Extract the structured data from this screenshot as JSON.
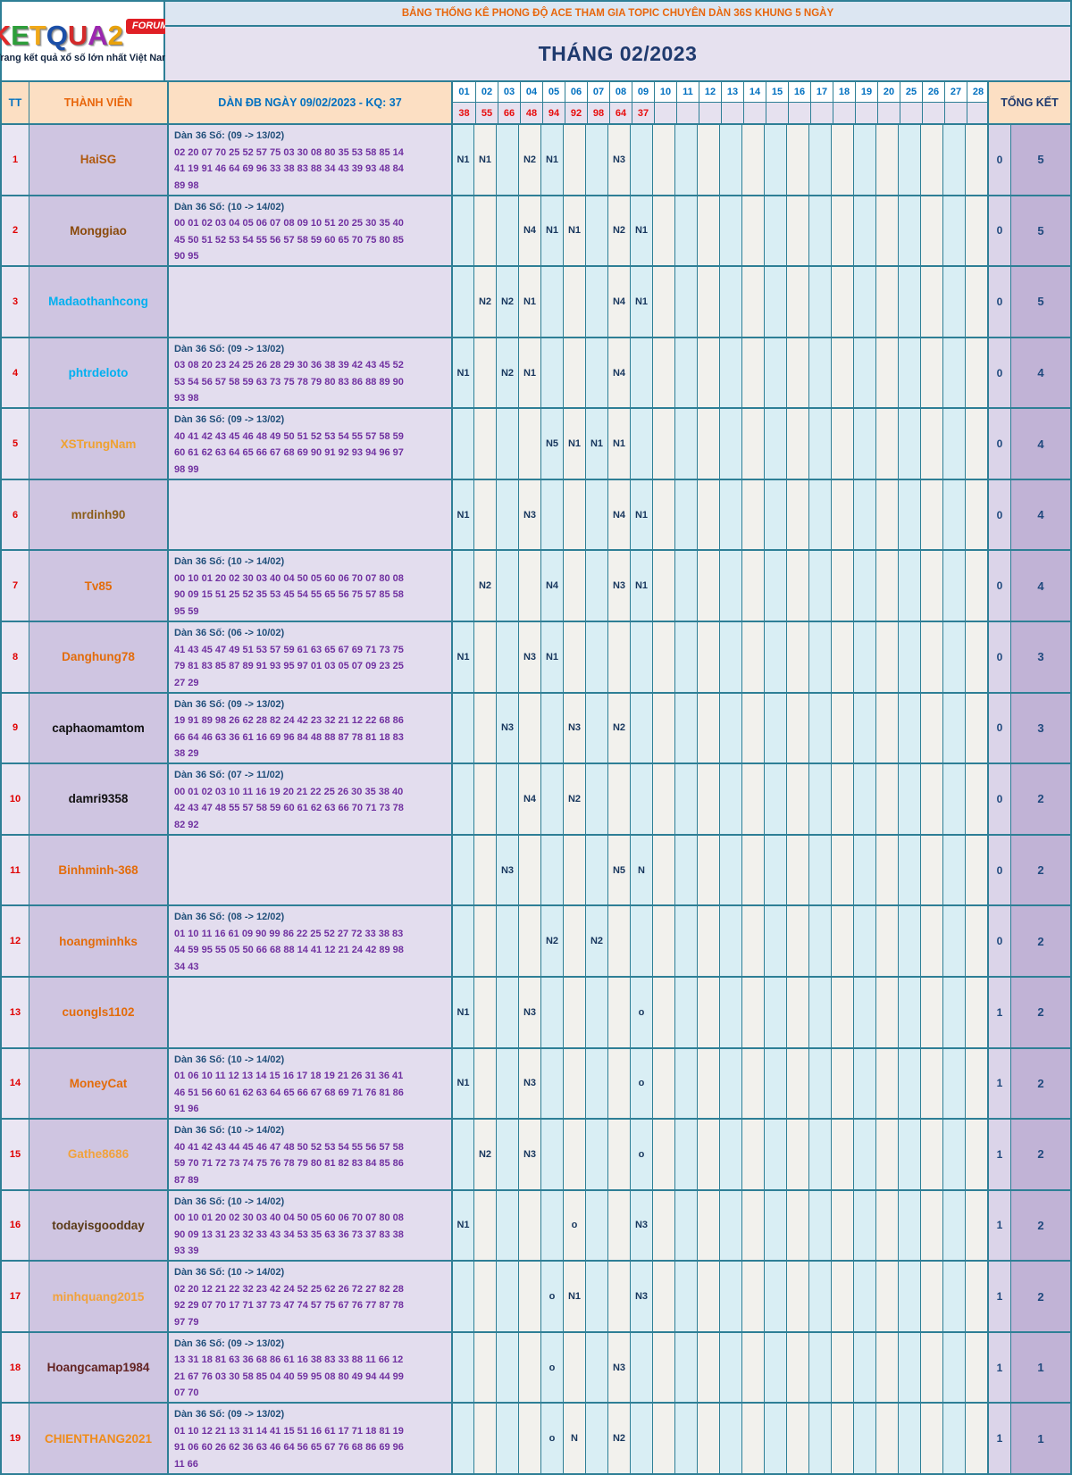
{
  "logo": {
    "letters": [
      {
        "ch": "K",
        "color": "#e02a2a"
      },
      {
        "ch": "E",
        "color": "#2e9e3a"
      },
      {
        "ch": "T",
        "color": "#f0a818"
      },
      {
        "ch": "Q",
        "color": "#1b4fa8"
      },
      {
        "ch": "U",
        "color": "#d42a2a"
      },
      {
        "ch": "A",
        "color": "#9c27b0"
      },
      {
        "ch": "2",
        "color": "#e8a20c"
      }
    ],
    "badge": "FORUM",
    "tagline": "Trang kết quả xổ số lớn nhất Việt Nam"
  },
  "header": {
    "banner": "BẢNG THỐNG KÊ PHONG ĐỘ ACE THAM GIA TOPIC CHUYÊN DÀN 36S KHUNG 5 NGÀY",
    "month": "THÁNG 02/2023"
  },
  "columns": {
    "tt": "TT",
    "member": "THÀNH VIÊN",
    "dan": "DÀN ĐB NGÀY 09/02/2023 - KQ: 37",
    "tongket": "TỔNG KẾT",
    "days": [
      "01",
      "02",
      "03",
      "04",
      "05",
      "06",
      "07",
      "08",
      "09",
      "10",
      "11",
      "12",
      "13",
      "14",
      "15",
      "16",
      "17",
      "18",
      "19",
      "20",
      "25",
      "26",
      "27",
      "28"
    ],
    "day_results": [
      "38",
      "55",
      "66",
      "48",
      "94",
      "92",
      "98",
      "64",
      "37",
      "",
      "",
      "",
      "",
      "",
      "",
      "",
      "",
      "",
      "",
      "",
      "",
      "",
      "",
      ""
    ]
  },
  "colors": {
    "border_teal": "#2e7f96",
    "day_blue": "#d9eef4",
    "day_white": "#f2f1ed",
    "marker_navy": "#17365d",
    "dan_purple": "#7030a0",
    "banner_orange": "#e8660c",
    "result_red": "#e80c0c"
  },
  "rows": [
    {
      "tt": "1",
      "name": "HaiSG",
      "name_color": "#b05a10",
      "dan_title": "Dàn 36 Số: (09 -> 13/02)",
      "dan_lines": [
        "02 20 07 70 25 52 57 75 03 30 08 80 35 53 58 85 14",
        "41 19 91 46 64 69 96 33 38 83 88 34 43 39 93 48 84",
        "89 98"
      ],
      "marks": {
        "01": "N1",
        "02": "N1",
        "04": "N2",
        "05": "N1",
        "08": "N3"
      },
      "tk1": "0",
      "tk2": "5"
    },
    {
      "tt": "2",
      "name": "Monggiao",
      "name_color": "#8a4a0b",
      "dan_title": "Dàn 36 Số: (10 -> 14/02)",
      "dan_lines": [
        "00 01 02 03 04 05 06 07 08 09 10 51 20 25 30 35 40",
        "45 50 51 52 53 54 55 56 57 58 59 60 65 70 75 80 85",
        "90 95"
      ],
      "marks": {
        "04": "N4",
        "05": "N1",
        "06": "N1",
        "08": "N2",
        "09": "N1"
      },
      "tk1": "0",
      "tk2": "5"
    },
    {
      "tt": "3",
      "name": "Madaothanhcong",
      "name_color": "#00b0f0",
      "dan_title": "",
      "dan_lines": [],
      "marks": {
        "02": "N2",
        "03": "N2",
        "04": "N1",
        "08": "N4",
        "09": "N1"
      },
      "tk1": "0",
      "tk2": "5"
    },
    {
      "tt": "4",
      "name": "phtrdeloto",
      "name_color": "#00b0f0",
      "dan_title": "Dàn 36 Số: (09 -> 13/02)",
      "dan_lines": [
        "03 08 20 23 24 25 26 28 29 30 36 38 39 42 43 45 52",
        "53 54 56 57 58 59 63 73 75 78 79 80 83 86 88 89 90",
        "93 98"
      ],
      "marks": {
        "01": "N1",
        "03": "N2",
        "04": "N1",
        "08": "N4"
      },
      "tk1": "0",
      "tk2": "4"
    },
    {
      "tt": "5",
      "name": "XSTrungNam",
      "name_color": "#efa230",
      "dan_title": "Dàn 36 Số: (09 -> 13/02)",
      "dan_lines": [
        "40 41 42 43 45 46 48 49 50 51 52 53 54 55 57 58 59",
        "60 61 62 63 64 65 66 67 68 69 90 91 92 93 94 96 97",
        "98 99"
      ],
      "marks": {
        "05": "N5",
        "06": "N1",
        "07": "N1",
        "08": "N1"
      },
      "tk1": "0",
      "tk2": "4"
    },
    {
      "tt": "6",
      "name": "mrdinh90",
      "name_color": "#8b5e1a",
      "dan_title": "",
      "dan_lines": [],
      "marks": {
        "01": "N1",
        "04": "N3",
        "08": "N4",
        "09": "N1"
      },
      "tk1": "0",
      "tk2": "4"
    },
    {
      "tt": "7",
      "name": "Tv85",
      "name_color": "#e36c0a",
      "dan_title": "Dàn 36 Số: (10 -> 14/02)",
      "dan_lines": [
        "00 10 01 20 02 30 03 40 04 50 05 60 06 70 07 80 08",
        "90 09 15 51 25 52 35 53 45 54 55 65 56 75 57 85 58",
        "95 59"
      ],
      "marks": {
        "02": "N2",
        "05": "N4",
        "08": "N3",
        "09": "N1"
      },
      "tk1": "0",
      "tk2": "4"
    },
    {
      "tt": "8",
      "name": "Danghung78",
      "name_color": "#e36c0a",
      "dan_title": "Dàn 36 Số: (06 -> 10/02)",
      "dan_lines": [
        "41 43 45 47 49 51 53 57 59 61 63 65 67 69 71 73 75",
        "79 81 83 85 87 89 91 93 95 97 01 03 05 07 09 23 25",
        "27 29"
      ],
      "marks": {
        "01": "N1",
        "04": "N3",
        "05": "N1"
      },
      "tk1": "0",
      "tk2": "3"
    },
    {
      "tt": "9",
      "name": "caphaomamtom",
      "name_color": "#111111",
      "dan_title": "Dàn 36 Số: (09 -> 13/02)",
      "dan_lines": [
        "19 91 89 98 26 62 28 82 24 42 23 32 21 12 22 68 86",
        "66 64 46 63 36 61 16 69 96 84 48 88 87 78 81 18 83",
        "38 29"
      ],
      "marks": {
        "03": "N3",
        "06": "N3",
        "08": "N2"
      },
      "tk1": "0",
      "tk2": "3"
    },
    {
      "tt": "10",
      "name": "damri9358",
      "name_color": "#111111",
      "dan_title": "Dàn 36 Số: (07 -> 11/02)",
      "dan_lines": [
        "00 01 02 03 10 11 16 19 20 21 22 25 26 30 35 38 40",
        "42 43 47 48 55 57 58 59 60 61 62 63 66 70 71 73 78",
        "82 92"
      ],
      "marks": {
        "04": "N4",
        "06": "N2"
      },
      "tk1": "0",
      "tk2": "2"
    },
    {
      "tt": "11",
      "name": "Binhminh-368",
      "name_color": "#e36c0a",
      "dan_title": "",
      "dan_lines": [],
      "marks": {
        "03": "N3",
        "08": "N5",
        "09": "N"
      },
      "tk1": "0",
      "tk2": "2"
    },
    {
      "tt": "12",
      "name": "hoangminhks",
      "name_color": "#e36c0a",
      "dan_title": "Dàn 36 Số: (08 -> 12/02)",
      "dan_lines": [
        "01 10 11 16 61 09 90 99 86 22 25 52 27 72 33 38 83",
        "44 59 95 55 05 50 66 68 88 14 41 12 21 24 42 89 98",
        "34 43"
      ],
      "marks": {
        "05": "N2",
        "07": "N2"
      },
      "tk1": "0",
      "tk2": "2"
    },
    {
      "tt": "13",
      "name": "cuongls1102",
      "name_color": "#e36c0a",
      "dan_title": "",
      "dan_lines": [],
      "marks": {
        "01": "N1",
        "04": "N3",
        "09": "o"
      },
      "tk1": "1",
      "tk2": "2"
    },
    {
      "tt": "14",
      "name": "MoneyCat",
      "name_color": "#e36c0a",
      "dan_title": "Dàn 36 Số: (10 -> 14/02)",
      "dan_lines": [
        "01 06 10 11 12 13 14 15 16 17 18 19 21 26 31 36 41",
        "46 51 56 60 61 62 63 64 65 66 67 68 69 71 76 81 86",
        "91 96"
      ],
      "marks": {
        "01": "N1",
        "04": "N3",
        "09": "o"
      },
      "tk1": "1",
      "tk2": "2"
    },
    {
      "tt": "15",
      "name": "Gathe8686",
      "name_color": "#f1a23c",
      "dan_title": "Dàn 36 Số: (10 -> 14/02)",
      "dan_lines": [
        "40 41 42 43 44 45 46 47 48 50 52 53 54 55 56 57 58",
        "59 70 71 72 73 74 75 76 78 79 80 81 82 83 84 85 86",
        "87 89"
      ],
      "marks": {
        "02": "N2",
        "04": "N3",
        "09": "o"
      },
      "tk1": "1",
      "tk2": "2"
    },
    {
      "tt": "16",
      "name": "todayisgoodday",
      "name_color": "#5a3a16",
      "dan_title": "Dàn 36 Số: (10 -> 14/02)",
      "dan_lines": [
        "00 10 01 20 02 30 03 40 04 50 05 60 06 70 07 80 08",
        "90 09 13 31 23 32 33 43 34 53 35 63 36 73 37 83 38",
        "93 39"
      ],
      "marks": {
        "01": "N1",
        "06": "o",
        "09": "N3"
      },
      "tk1": "1",
      "tk2": "2"
    },
    {
      "tt": "17",
      "name": "minhquang2015",
      "name_color": "#f1a23c",
      "dan_title": "Dàn 36 Số: (10 -> 14/02)",
      "dan_lines": [
        "02 20 12 21 22 32 23 42 24 52 25 62 26 72 27 82 28",
        "92 29 07 70 17 71 37 73 47 74 57 75 67 76 77 87 78",
        "97 79"
      ],
      "marks": {
        "05": "o",
        "06": "N1",
        "09": "N3"
      },
      "tk1": "1",
      "tk2": "2"
    },
    {
      "tt": "18",
      "name": "Hoangcamap1984",
      "name_color": "#632423",
      "dan_title": "Dàn 36 Số: (09 -> 13/02)",
      "dan_lines": [
        "13 31 18 81 63 36 68 86 61 16 38 83 33 88 11 66 12",
        "21 67 76 03 30 58 85 04 40 59 95 08 80 49 94 44 99",
        "07 70"
      ],
      "marks": {
        "05": "o",
        "08": "N3"
      },
      "tk1": "1",
      "tk2": "1"
    },
    {
      "tt": "19",
      "name": "CHIENTHANG2021",
      "name_color": "#ef8c1a",
      "dan_title": "Dàn 36 Số: (09 -> 13/02)",
      "dan_lines": [
        "01 10 12 21 13 31 14 41 15 51 16 61 17 71 18 81 19",
        "91 06 60 26 62 36 63 46 64 56 65 67 76 68 86 69 96",
        "11 66"
      ],
      "marks": {
        "05": "o",
        "06": "N",
        "08": "N2"
      },
      "tk1": "1",
      "tk2": "1"
    }
  ]
}
